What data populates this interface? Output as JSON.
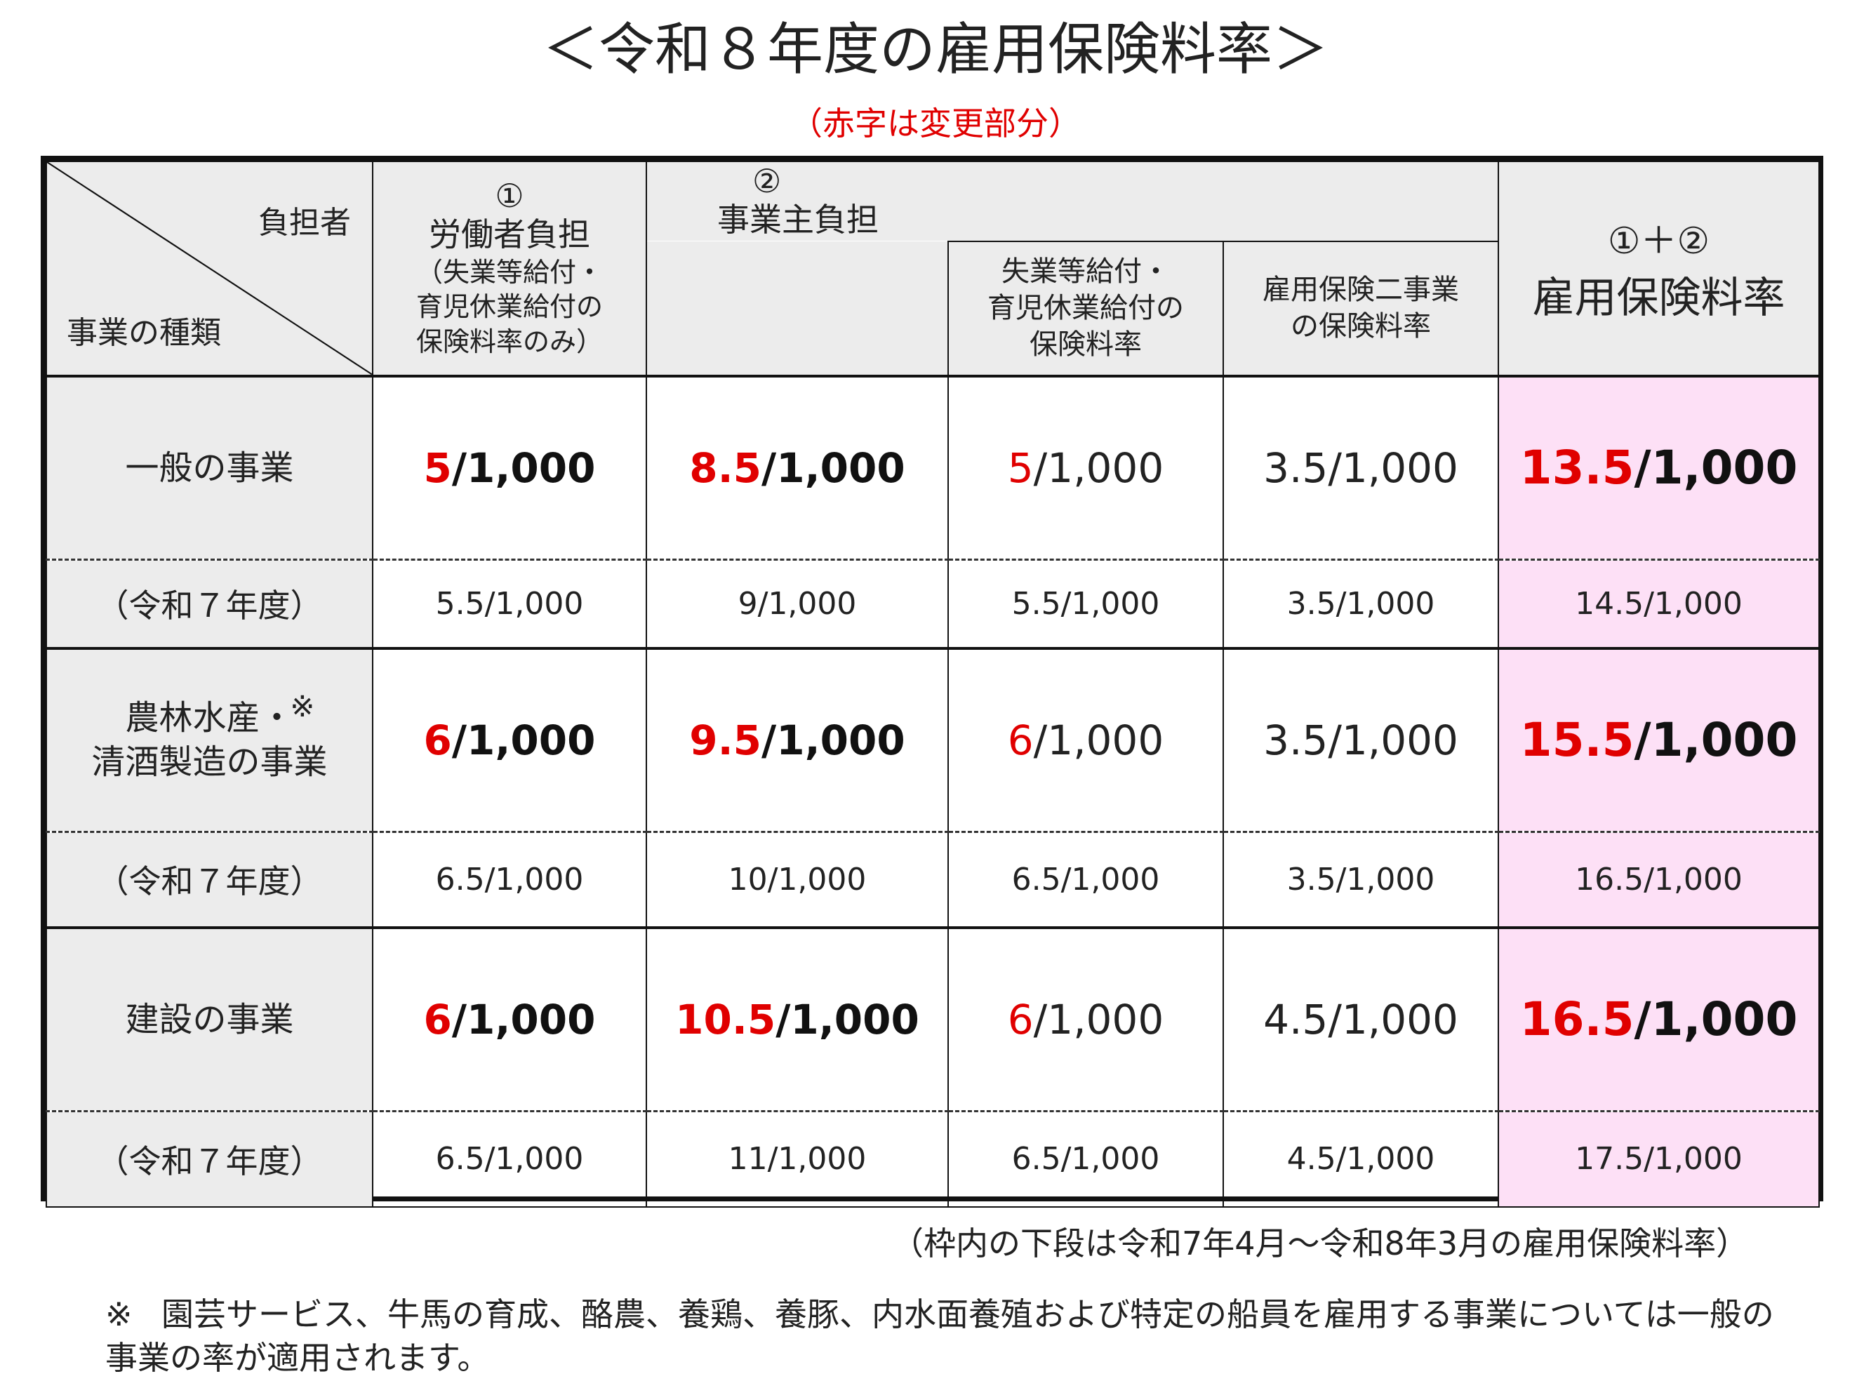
{
  "title": "＜令和８年度の雇用保険料率＞",
  "subtitle": "（赤字は変更部分）",
  "header": {
    "diag_top": "負担者",
    "diag_bottom": "事業の種類",
    "worker_num": "①",
    "worker_label": "労働者負担",
    "worker_sub1": "（失業等給付・",
    "worker_sub2": "育児休業給付の",
    "worker_sub3": "保険料率のみ）",
    "employer_num": "②",
    "employer_label": "事業主負担",
    "emp_sub_a1": "失業等給付・",
    "emp_sub_a2": "育児休業給付の",
    "emp_sub_a3": "保険料率",
    "emp_sub_b1": "雇用保険二事業",
    "emp_sub_b2": "の保険料率",
    "total_num": "①＋②",
    "total_label": "雇用保険料率"
  },
  "rows": [
    {
      "category": "一般の事業",
      "prev_label": "（令和７年度）",
      "worker_red": "5",
      "worker_rest": "/1,000",
      "employer_red": "8.5",
      "employer_rest": "/1,000",
      "unemp_red": "5",
      "unemp_rest": "/1,000",
      "twoproj": "3.5/1,000",
      "total_red": "13.5",
      "total_rest": "/1,000",
      "prev": [
        "5.5/1,000",
        "9/1,000",
        "5.5/1,000",
        "3.5/1,000",
        "14.5/1,000"
      ]
    },
    {
      "category_l1": "農林水産・",
      "category_mark": "※",
      "category_l2": "清酒製造の事業",
      "prev_label": "（令和７年度）",
      "worker_red": "6",
      "worker_rest": "/1,000",
      "employer_red": "9.5",
      "employer_rest": "/1,000",
      "unemp_red": "6",
      "unemp_rest": "/1,000",
      "twoproj": "3.5/1,000",
      "total_red": "15.5",
      "total_rest": "/1,000",
      "prev": [
        "6.5/1,000",
        "10/1,000",
        "6.5/1,000",
        "3.5/1,000",
        "16.5/1,000"
      ]
    },
    {
      "category": "建設の事業",
      "prev_label": "（令和７年度）",
      "worker_red": "6",
      "worker_rest": "/1,000",
      "employer_red": "10.5",
      "employer_rest": "/1,000",
      "unemp_red": "6",
      "unemp_rest": "/1,000",
      "twoproj": "4.5/1,000",
      "total_red": "16.5",
      "total_rest": "/1,000",
      "prev": [
        "6.5/1,000",
        "11/1,000",
        "6.5/1,000",
        "4.5/1,000",
        "17.5/1,000"
      ]
    }
  ],
  "notes": {
    "lower_row": "（枠内の下段は令和7年4月～令和8年3月の雇用保険料率）",
    "mark": "※",
    "footnote": "園芸サービス、牛馬の育成、酪農、養鶏、養豚、内水面養殖および特定の船員を雇用する事業については一般の事業の率が適用されます。"
  },
  "colors": {
    "accent_red": "#e00000",
    "header_grey": "#ececec",
    "total_pink": "#fde0f6"
  }
}
